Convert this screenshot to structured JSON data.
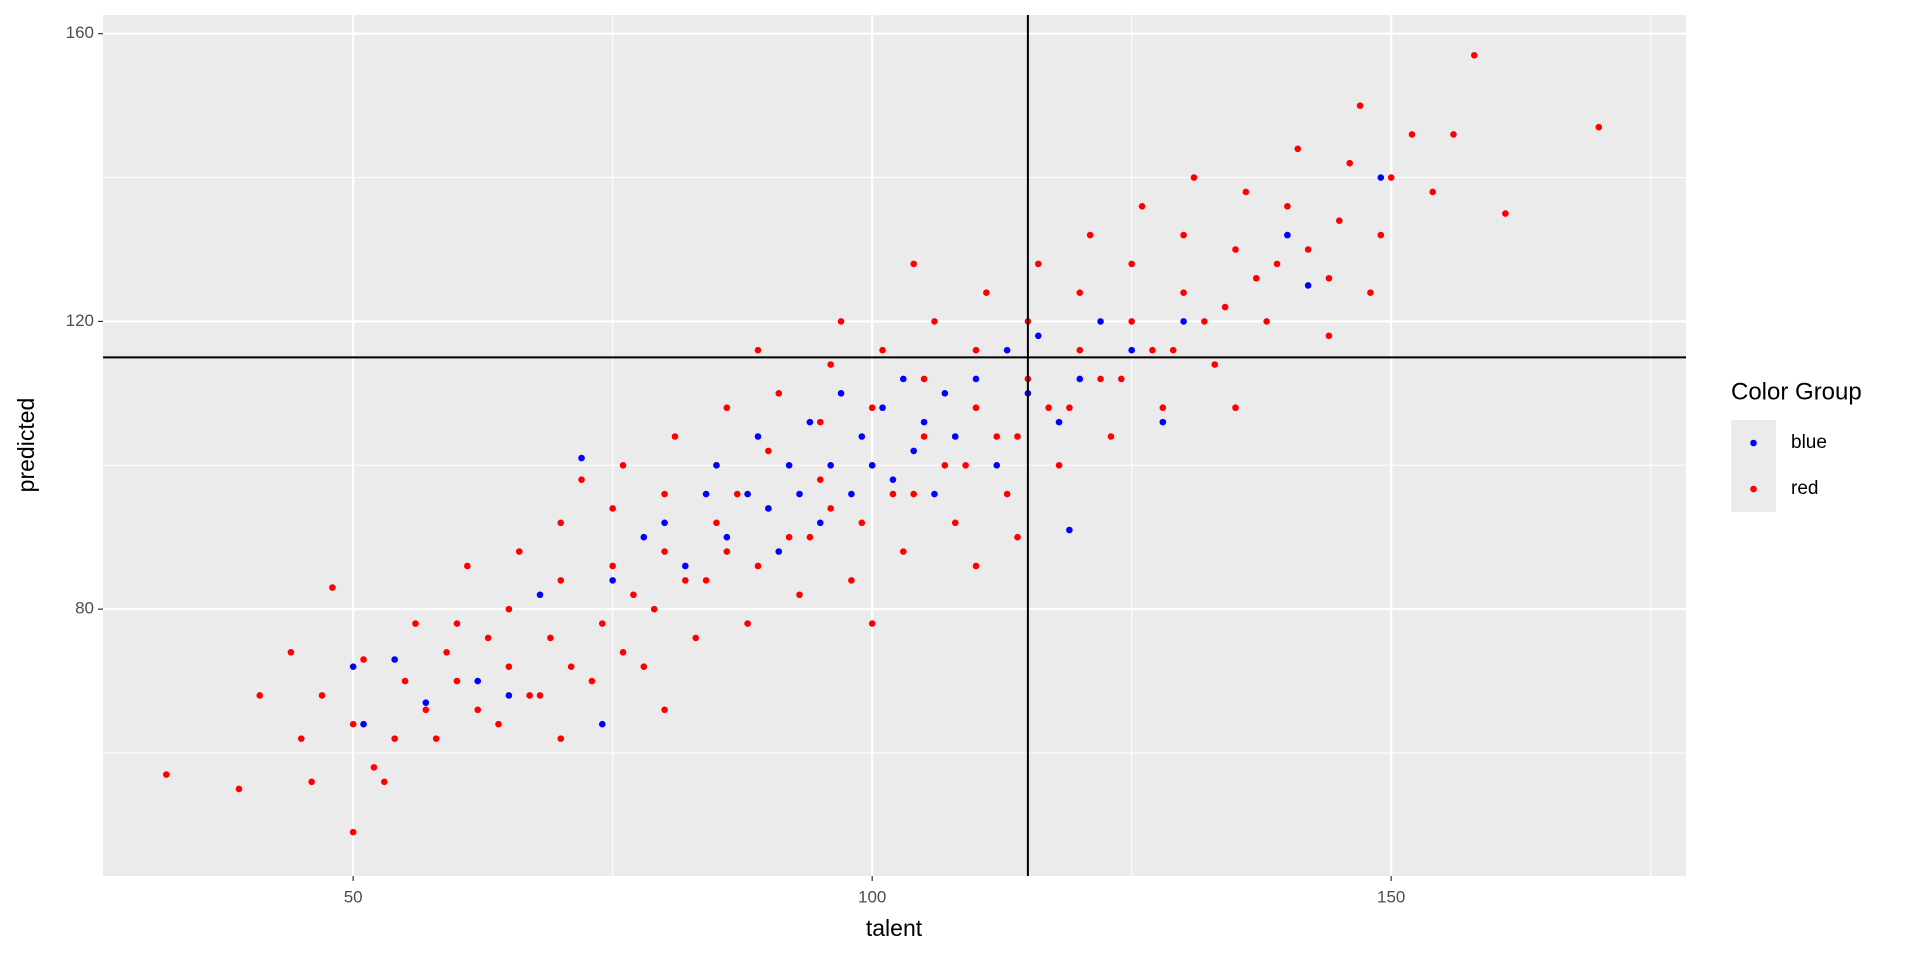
{
  "chart_data": {
    "type": "scatter",
    "xlabel": "talent",
    "ylabel": "predicted",
    "legend_title": "Color Group",
    "legend": "right",
    "xlim": [
      25.9,
      178.4
    ],
    "ylim": [
      42.9,
      162.6
    ],
    "xticks": [
      50,
      100,
      150
    ],
    "yticks": [
      80,
      120,
      160
    ],
    "xminor": [
      75,
      125,
      175
    ],
    "yminor": [
      60,
      100,
      140
    ],
    "grid": true,
    "vline": 115,
    "hline": 115,
    "series": [
      {
        "name": "blue",
        "color": "#0000ff",
        "x": [
          51,
          50,
          54,
          57,
          62,
          65,
          68,
          72,
          74,
          75,
          78,
          80,
          82,
          84,
          85,
          86,
          88,
          89,
          90,
          91,
          92,
          93,
          94,
          95,
          96,
          97,
          98,
          99,
          100,
          101,
          102,
          103,
          104,
          105,
          106,
          107,
          108,
          110,
          112,
          113,
          115,
          116,
          118,
          120,
          122,
          125,
          128,
          130,
          140,
          142,
          149,
          119
        ],
        "y": [
          64,
          72,
          73,
          67,
          70,
          68,
          82,
          101,
          64,
          84,
          90,
          92,
          86,
          96,
          100,
          90,
          96,
          104,
          94,
          88,
          100,
          96,
          106,
          92,
          100,
          110,
          96,
          104,
          100,
          108,
          98,
          112,
          102,
          106,
          96,
          110,
          104,
          112,
          100,
          116,
          110,
          118,
          106,
          112,
          120,
          116,
          106,
          120,
          132,
          125,
          140,
          91
        ]
      },
      {
        "name": "red",
        "color": "#ff0000",
        "x": [
          32,
          39,
          41,
          45,
          46,
          47,
          44,
          50,
          50,
          51,
          52,
          48,
          54,
          55,
          56,
          57,
          53,
          58,
          60,
          60,
          61,
          62,
          59,
          64,
          65,
          65,
          66,
          63,
          67,
          68,
          69,
          70,
          70,
          71,
          72,
          70,
          73,
          74,
          75,
          75,
          76,
          76,
          77,
          78,
          79,
          80,
          80,
          81,
          82,
          80,
          83,
          84,
          85,
          85,
          86,
          86,
          87,
          88,
          89,
          90,
          90,
          91,
          92,
          89,
          93,
          94,
          95,
          95,
          96,
          96,
          97,
          98,
          99,
          100,
          100,
          101,
          102,
          100,
          103,
          104,
          105,
          105,
          106,
          107,
          104,
          108,
          109,
          110,
          110,
          111,
          112,
          110,
          113,
          114,
          115,
          115,
          116,
          117,
          114,
          118,
          119,
          120,
          120,
          121,
          122,
          123,
          124,
          125,
          125,
          126,
          127,
          128,
          129,
          130,
          130,
          131,
          132,
          133,
          134,
          135,
          136,
          137,
          135,
          138,
          139,
          140,
          141,
          142,
          144,
          145,
          146,
          147,
          144,
          149,
          150,
          152,
          148,
          154,
          156,
          158,
          161,
          170
        ],
        "y": [
          57,
          55,
          68,
          62,
          56,
          68,
          74,
          49,
          64,
          73,
          58,
          83,
          62,
          70,
          78,
          66,
          56,
          62,
          70,
          78,
          86,
          66,
          74,
          64,
          72,
          80,
          88,
          76,
          68,
          68,
          76,
          84,
          92,
          72,
          98,
          62,
          70,
          78,
          86,
          94,
          100,
          74,
          82,
          72,
          80,
          88,
          96,
          104,
          84,
          66,
          76,
          84,
          92,
          100,
          108,
          88,
          96,
          78,
          86,
          94,
          102,
          110,
          90,
          116,
          82,
          90,
          98,
          106,
          114,
          94,
          120,
          84,
          92,
          100,
          108,
          116,
          96,
          78,
          88,
          96,
          104,
          112,
          120,
          100,
          128,
          92,
          100,
          108,
          116,
          124,
          104,
          86,
          96,
          104,
          112,
          120,
          128,
          108,
          90,
          100,
          108,
          116,
          124,
          132,
          112,
          104,
          112,
          120,
          128,
          136,
          116,
          108,
          116,
          124,
          132,
          140,
          120,
          114,
          122,
          130,
          138,
          126,
          108,
          120,
          128,
          136,
          144,
          130,
          126,
          134,
          142,
          150,
          118,
          132,
          140,
          146,
          124,
          138,
          146,
          157,
          135,
          147
        ]
      }
    ]
  }
}
